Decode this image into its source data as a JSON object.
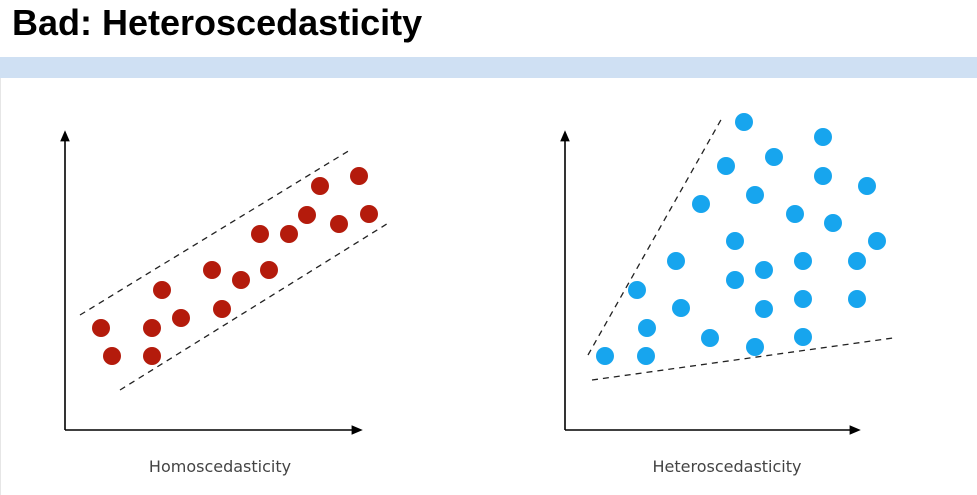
{
  "title": "Bad: Heteroscedasticity",
  "diagrams": [
    {
      "caption": "Homoscedasticity"
    },
    {
      "caption": "Heteroscedasticity"
    }
  ]
}
